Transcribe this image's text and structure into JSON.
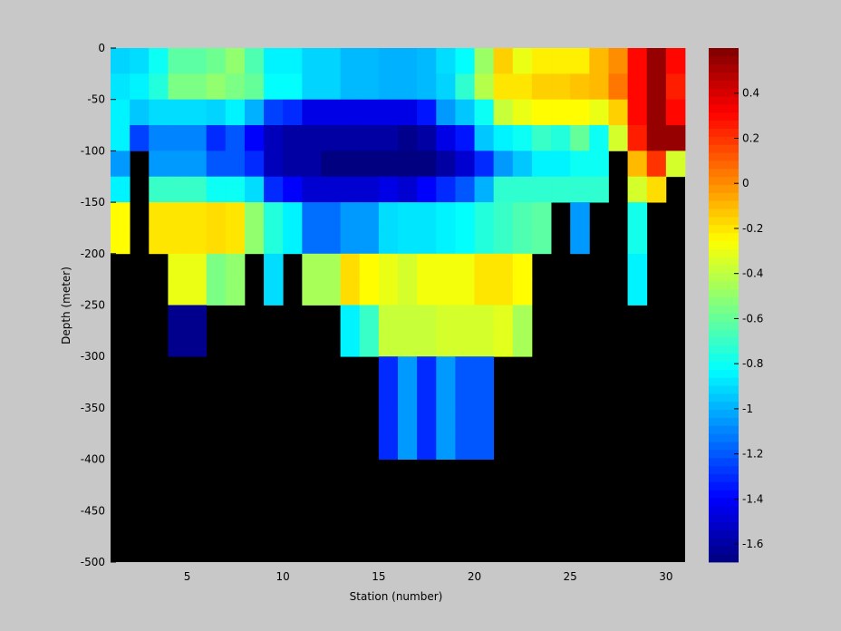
{
  "figure": {
    "background": "#c8c8c8"
  },
  "chart_data": {
    "type": "heatmap",
    "xlabel": "Station (number)",
    "ylabel": "Depth (meter)",
    "xlim": [
      1,
      31
    ],
    "ylim": [
      -500,
      0
    ],
    "xticks": [
      5,
      10,
      15,
      20,
      25,
      30
    ],
    "yticks": [
      0,
      -50,
      -100,
      -150,
      -200,
      -250,
      -300,
      -350,
      -400,
      -450,
      -500
    ],
    "colorbar": {
      "colormap": "jet",
      "clim": [
        -1.68,
        0.6
      ],
      "ticks": [
        0.4,
        0.2,
        0,
        -0.2,
        -0.4,
        -0.6,
        -0.8,
        -1,
        -1.2,
        -1.4,
        -1.6
      ]
    },
    "missing_color": "#000000",
    "stations": [
      1,
      2,
      3,
      4,
      5,
      6,
      7,
      8,
      9,
      10,
      11,
      12,
      13,
      14,
      15,
      16,
      17,
      18,
      19,
      20,
      21,
      22,
      23,
      24,
      25,
      26,
      27,
      28,
      29,
      30
    ],
    "depths": [
      0,
      -25,
      -50,
      -75,
      -100,
      -125,
      -150,
      -175,
      -200,
      -225,
      -250,
      -275,
      -300,
      -325,
      -350,
      -375,
      -400,
      -425,
      -450,
      -475
    ],
    "values": [
      [
        -0.92,
        -0.9,
        -0.8,
        -0.62,
        -0.62,
        -0.58,
        -0.5,
        -0.65,
        -0.85,
        -0.85,
        -0.92,
        -0.92,
        -0.98,
        -0.98,
        -1.0,
        -1.0,
        -0.98,
        -0.9,
        -0.82,
        -0.48,
        -0.15,
        -0.3,
        -0.22,
        -0.22,
        -0.22,
        -0.1,
        0.0,
        0.3,
        0.55,
        0.3
      ],
      [
        -0.88,
        -0.85,
        -0.75,
        -0.55,
        -0.55,
        -0.5,
        -0.55,
        -0.6,
        -0.82,
        -0.82,
        -0.92,
        -0.92,
        -0.98,
        -0.98,
        -1.0,
        -1.0,
        -0.98,
        -0.92,
        -0.72,
        -0.42,
        -0.2,
        -0.2,
        -0.15,
        -0.15,
        -0.12,
        -0.1,
        0.05,
        0.3,
        0.55,
        0.25
      ],
      [
        -0.85,
        -0.95,
        -0.9,
        -0.9,
        -0.9,
        -0.92,
        -0.85,
        -1.0,
        -1.25,
        -1.3,
        -1.45,
        -1.45,
        -1.45,
        -1.45,
        -1.45,
        -1.45,
        -1.35,
        -1.05,
        -0.95,
        -0.8,
        -0.38,
        -0.3,
        -0.25,
        -0.25,
        -0.25,
        -0.3,
        -0.15,
        0.3,
        0.55,
        0.3
      ],
      [
        -0.85,
        -1.25,
        -1.1,
        -1.1,
        -1.1,
        -1.3,
        -1.2,
        -1.4,
        -1.55,
        -1.6,
        -1.6,
        -1.6,
        -1.6,
        -1.6,
        -1.6,
        -1.65,
        -1.6,
        -1.45,
        -1.35,
        -0.95,
        -0.85,
        -0.8,
        -0.7,
        -0.75,
        -0.6,
        -0.8,
        -0.35,
        0.25,
        0.55,
        0.55
      ],
      [
        -1.05,
        null,
        -1.05,
        -1.05,
        -1.05,
        -1.2,
        -1.2,
        -1.3,
        -1.55,
        -1.6,
        -1.6,
        -1.68,
        -1.68,
        -1.68,
        -1.68,
        -1.68,
        -1.68,
        -1.6,
        -1.5,
        -1.3,
        -1.05,
        -0.95,
        -0.85,
        -0.85,
        -0.8,
        -0.8,
        null,
        -0.1,
        0.2,
        -0.35
      ],
      [
        -0.85,
        null,
        -0.7,
        -0.7,
        -0.7,
        -0.8,
        -0.8,
        -0.9,
        -1.3,
        -1.4,
        -1.5,
        -1.5,
        -1.5,
        -1.5,
        -1.45,
        -1.5,
        -1.4,
        -1.3,
        -1.2,
        -1.0,
        -0.72,
        -0.72,
        -0.72,
        -0.72,
        -0.72,
        -0.72,
        null,
        -0.35,
        -0.18,
        null
      ],
      [
        -0.25,
        null,
        -0.2,
        -0.2,
        -0.2,
        -0.18,
        -0.2,
        -0.5,
        -0.75,
        -0.85,
        -1.15,
        -1.15,
        -1.05,
        -1.05,
        -0.9,
        -0.88,
        -0.88,
        -0.85,
        -0.82,
        -0.75,
        -0.7,
        -0.65,
        -0.62,
        null,
        -1.05,
        null,
        null,
        -0.78,
        null,
        null
      ],
      [
        -0.25,
        null,
        -0.2,
        -0.2,
        -0.2,
        -0.18,
        -0.2,
        -0.5,
        -0.75,
        -0.85,
        -1.15,
        -1.15,
        -1.05,
        -1.05,
        -0.9,
        -0.88,
        -0.88,
        -0.85,
        -0.82,
        -0.75,
        -0.7,
        -0.65,
        -0.62,
        null,
        -1.05,
        null,
        null,
        -0.78,
        null,
        null
      ],
      [
        null,
        null,
        null,
        -0.3,
        -0.3,
        -0.55,
        -0.5,
        null,
        -0.9,
        null,
        -0.45,
        -0.45,
        -0.18,
        -0.25,
        -0.3,
        -0.35,
        -0.28,
        -0.28,
        -0.28,
        -0.2,
        -0.2,
        -0.25,
        null,
        null,
        null,
        null,
        null,
        -0.85,
        null,
        null
      ],
      [
        null,
        null,
        null,
        -0.3,
        -0.3,
        -0.55,
        -0.5,
        null,
        -0.9,
        null,
        -0.45,
        -0.45,
        -0.18,
        -0.25,
        -0.3,
        -0.35,
        -0.28,
        -0.28,
        -0.28,
        -0.2,
        -0.2,
        -0.25,
        null,
        null,
        null,
        null,
        null,
        -0.85,
        null,
        null
      ],
      [
        null,
        null,
        null,
        -1.65,
        -1.65,
        null,
        null,
        null,
        null,
        null,
        null,
        null,
        -0.85,
        -0.7,
        -0.38,
        -0.38,
        -0.38,
        -0.35,
        -0.35,
        -0.35,
        -0.32,
        -0.45,
        null,
        null,
        null,
        null,
        null,
        null,
        null,
        null
      ],
      [
        null,
        null,
        null,
        -1.65,
        -1.65,
        null,
        null,
        null,
        null,
        null,
        null,
        null,
        -0.85,
        -0.7,
        -0.38,
        -0.38,
        -0.38,
        -0.35,
        -0.35,
        -0.35,
        -0.32,
        -0.45,
        null,
        null,
        null,
        null,
        null,
        null,
        null,
        null
      ],
      [
        null,
        null,
        null,
        null,
        null,
        null,
        null,
        null,
        null,
        null,
        null,
        null,
        null,
        null,
        -1.3,
        -1.05,
        -1.3,
        -1.05,
        -1.2,
        -1.2,
        null,
        null,
        null,
        null,
        null,
        null,
        null,
        null,
        null,
        null
      ],
      [
        null,
        null,
        null,
        null,
        null,
        null,
        null,
        null,
        null,
        null,
        null,
        null,
        null,
        null,
        -1.3,
        -1.05,
        -1.3,
        -1.05,
        -1.2,
        -1.2,
        null,
        null,
        null,
        null,
        null,
        null,
        null,
        null,
        null,
        null
      ],
      [
        null,
        null,
        null,
        null,
        null,
        null,
        null,
        null,
        null,
        null,
        null,
        null,
        null,
        null,
        -1.3,
        -1.05,
        -1.3,
        -1.05,
        -1.2,
        -1.2,
        null,
        null,
        null,
        null,
        null,
        null,
        null,
        null,
        null,
        null
      ],
      [
        null,
        null,
        null,
        null,
        null,
        null,
        null,
        null,
        null,
        null,
        null,
        null,
        null,
        null,
        -1.3,
        -1.05,
        -1.3,
        -1.05,
        -1.2,
        -1.2,
        null,
        null,
        null,
        null,
        null,
        null,
        null,
        null,
        null,
        null
      ],
      [
        null,
        null,
        null,
        null,
        null,
        null,
        null,
        null,
        null,
        null,
        null,
        null,
        null,
        null,
        null,
        null,
        null,
        null,
        null,
        null,
        null,
        null,
        null,
        null,
        null,
        null,
        null,
        null,
        null,
        null
      ],
      [
        null,
        null,
        null,
        null,
        null,
        null,
        null,
        null,
        null,
        null,
        null,
        null,
        null,
        null,
        null,
        null,
        null,
        null,
        null,
        null,
        null,
        null,
        null,
        null,
        null,
        null,
        null,
        null,
        null,
        null
      ],
      [
        null,
        null,
        null,
        null,
        null,
        null,
        null,
        null,
        null,
        null,
        null,
        null,
        null,
        null,
        null,
        null,
        null,
        null,
        null,
        null,
        null,
        null,
        null,
        null,
        null,
        null,
        null,
        null,
        null,
        null
      ],
      [
        null,
        null,
        null,
        null,
        null,
        null,
        null,
        null,
        null,
        null,
        null,
        null,
        null,
        null,
        null,
        null,
        null,
        null,
        null,
        null,
        null,
        null,
        null,
        null,
        null,
        null,
        null,
        null,
        null,
        null
      ]
    ]
  }
}
